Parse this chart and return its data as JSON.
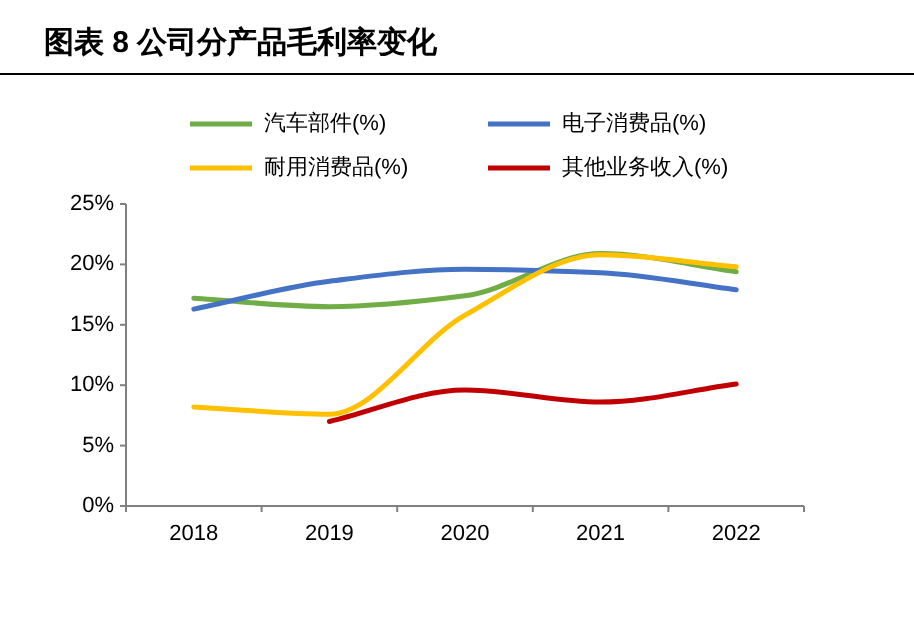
{
  "chart_data": {
    "type": "line",
    "title": "图表 8 公司分产品毛利率变化",
    "categories": [
      "2018",
      "2019",
      "2020",
      "2021",
      "2022"
    ],
    "series": [
      {
        "name": "汽车部件(%)",
        "color": "#70ad47",
        "values": [
          17.2,
          16.5,
          17.4,
          20.9,
          19.4
        ]
      },
      {
        "name": "电子消费品(%)",
        "color": "#4472c4",
        "values": [
          16.3,
          18.6,
          19.6,
          19.3,
          17.9
        ]
      },
      {
        "name": "耐用消费品(%)",
        "color": "#ffc000",
        "values": [
          8.2,
          7.6,
          15.8,
          20.8,
          19.8
        ]
      },
      {
        "name": "其他业务收入(%)",
        "color": "#c00000",
        "values": [
          null,
          7.0,
          9.6,
          8.6,
          10.1
        ]
      }
    ],
    "ylim": [
      0,
      25
    ],
    "yticks": [
      {
        "value": 0,
        "label": "0%"
      },
      {
        "value": 5,
        "label": "5%"
      },
      {
        "value": 10,
        "label": "10%"
      },
      {
        "value": 15,
        "label": "15%"
      },
      {
        "value": 20,
        "label": "20%"
      },
      {
        "value": 25,
        "label": "25%"
      }
    ],
    "grid": false,
    "legend": "top",
    "marker": "none",
    "line_style": "solid"
  }
}
